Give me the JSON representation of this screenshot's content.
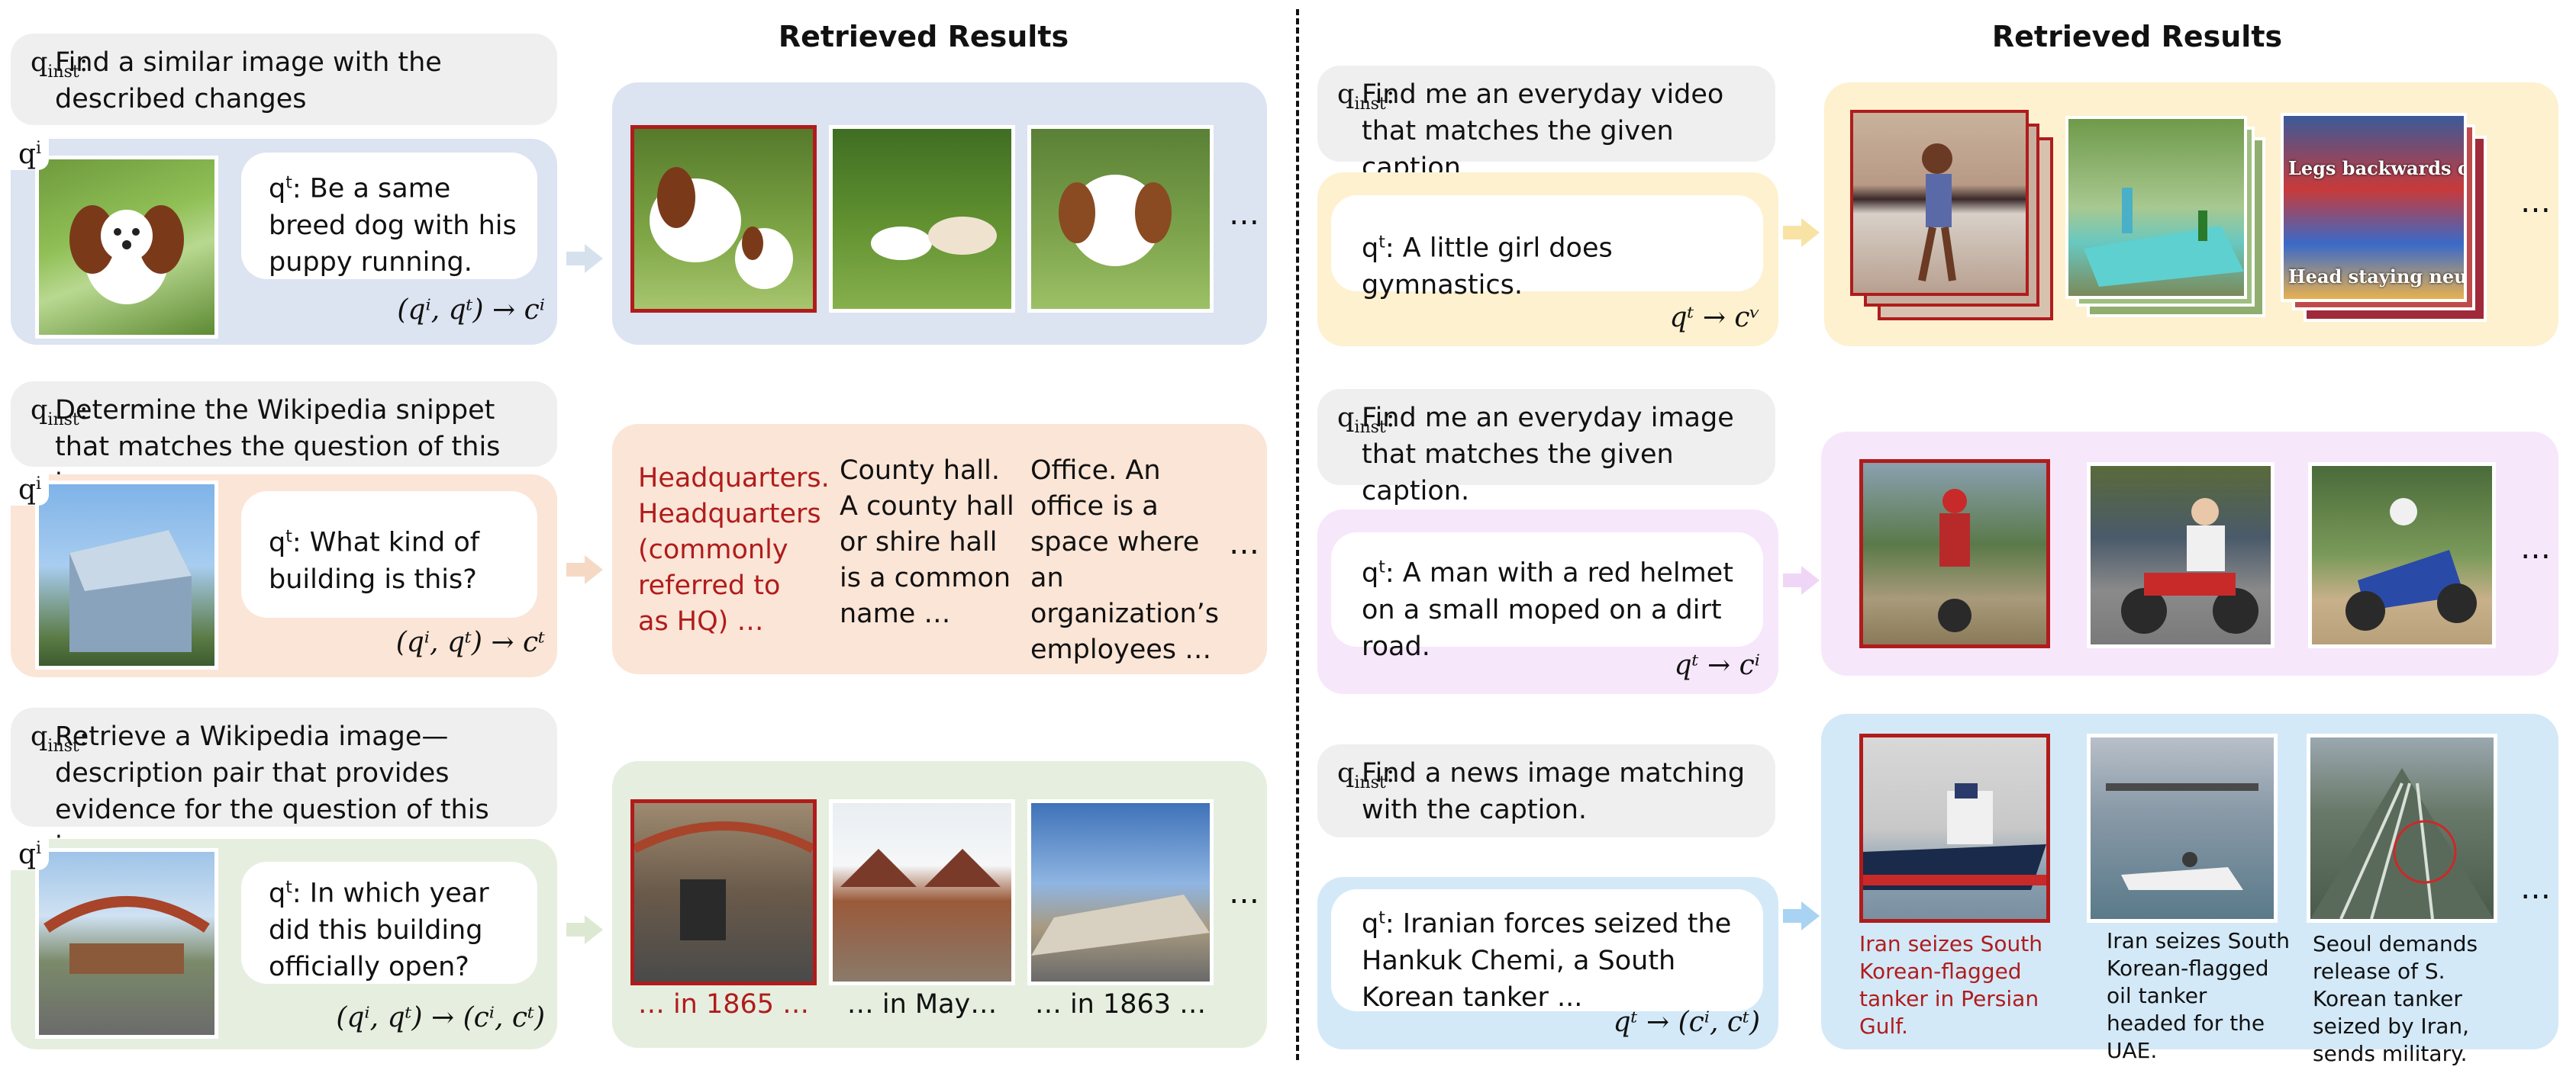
{
  "left": {
    "title": "Retrieved Results",
    "rows": [
      {
        "inst_text": "Find a similar image with the described changes",
        "qt_text": "Be a same breed dog with his puppy running.",
        "formula": "(qⁱ, qᵗ) → cⁱ",
        "ellipsis": "…"
      },
      {
        "inst_text": "Determine the Wikipedia snippet that matches the question of this image",
        "qt_text": "What kind of building is this?",
        "formula": "(qⁱ, qᵗ) → cᵗ",
        "snippets": [
          "Headquarters. Headquarters (commonly referred to as HQ) …",
          "County hall. A county hall or shire hall is a common name …",
          "Office. An office is a space where an organization’s employees …"
        ],
        "ellipsis": "…"
      },
      {
        "inst_text": "Retrieve a Wikipedia image—description pair that provides evidence for the question of this image.",
        "qt_text": "In which year did this building officially open?",
        "formula": "(qⁱ, qᵗ) → (cⁱ, cᵗ)",
        "captions": [
          "… in 1865 …",
          "… in May…",
          "… in 1863 …"
        ],
        "ellipsis": "…"
      }
    ]
  },
  "right": {
    "title": "Retrieved Results",
    "rows": [
      {
        "inst_text": "Find me an everyday video that matches the given caption.",
        "qt_text": "A little girl does gymnastics.",
        "formula": "qᵗ → cᵛ",
        "video_texts": [
          "Legs backwards ov",
          "Head staying neut"
        ],
        "ellipsis": "…"
      },
      {
        "inst_text": "Find me an everyday image that matches the given caption.",
        "qt_text": "A man with a red helmet on a small moped on a dirt road.",
        "formula": "qᵗ → cⁱ",
        "ellipsis": "…"
      },
      {
        "inst_text": "Find a news image matching with the caption.",
        "qt_text": "Iranian forces seized the Hankuk Chemi, a South Korean tanker  ...",
        "formula": "qᵗ → (cⁱ, cᵗ)",
        "captions": [
          "Iran seizes South Korean-flagged tanker in Persian Gulf.",
          "Iran seizes South Korean-flagged oil tanker headed for the UAE.",
          "Seoul demands release of S. Korean tanker seized by Iran, sends military."
        ],
        "ellipsis": "…"
      }
    ]
  },
  "labels": {
    "q_inst": "q",
    "q_inst_sub": "inst",
    "q_t": "q",
    "q_t_sup": "t",
    "q_i": "q",
    "q_i_sup": "i"
  },
  "colors": {
    "blue_row": "#dce3f1",
    "peach_row": "#fbe5d6",
    "green_row": "#e6efdf",
    "yellow_row": "#fdf1cf",
    "lilac_row": "#f7e7fb",
    "cyan_row": "#d3e9f8",
    "inst_gray": "#efefef",
    "selected_red": "#b01c1c"
  }
}
